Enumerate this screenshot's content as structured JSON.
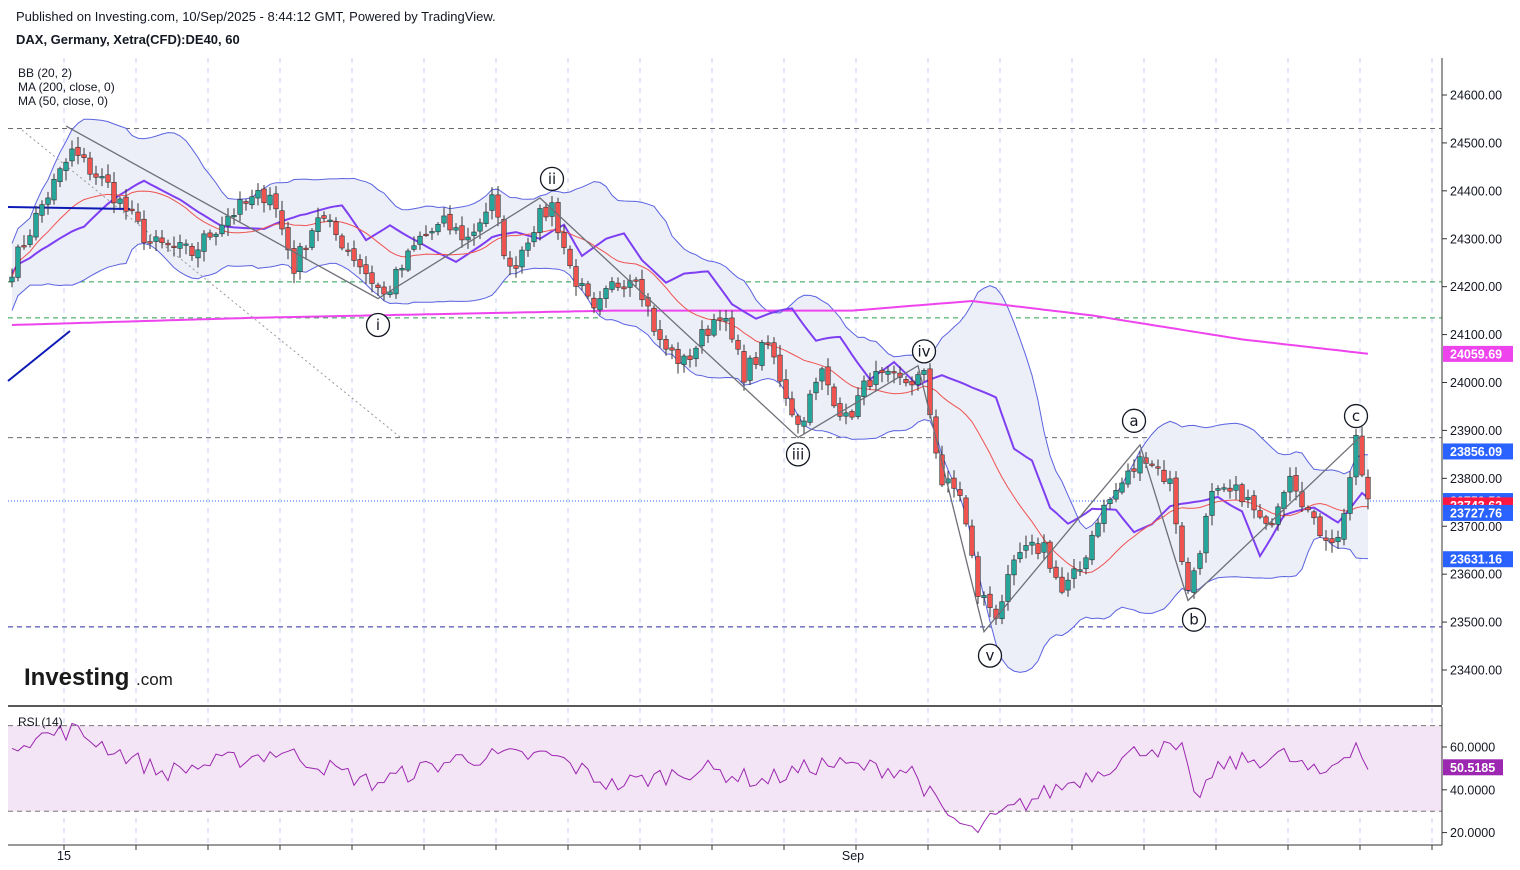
{
  "header": {
    "published": "Published on Investing.com, 10/Sep/2025 - 8:44:12 GMT, Powered by TradingView.",
    "symbol": "DAX, Germany, Xetra(CFD):DE40, 60"
  },
  "logo": {
    "name": "Investing",
    "domain": ".com"
  },
  "colors": {
    "up": "#26a69a",
    "down": "#ef5350",
    "bb": "#5b63e0",
    "bb_fill": "#eceef8",
    "ma200": "#ee44ee",
    "ma50": "#7e3ff2",
    "sma_red": "#ef5350",
    "last_price": "#ff1744",
    "rsi_line": "#9c27b0",
    "rsi_fill": "#f3e5f5"
  },
  "indicators": [
    "BB (20, 2)",
    "MA (200, close, 0)",
    "MA (50, close, 0)"
  ],
  "rsi": {
    "label": "RSI (14)",
    "value_badge": "50.5185",
    "value": 50.5185,
    "ticks": [
      "60.0000",
      "40.0000",
      "20.0000"
    ],
    "bands": [
      70,
      30
    ]
  },
  "chart_data": {
    "type": "candlestick",
    "price_ticks": [
      "24600.00",
      "24500.00",
      "24400.00",
      "24300.00",
      "24200.00",
      "24100.00",
      "24000.00",
      "23900.00",
      "23800.00",
      "23700.00",
      "23600.00",
      "23500.00",
      "23400.00"
    ],
    "x_labels": [
      "15",
      "Sep"
    ],
    "price_badges": [
      {
        "label": "24059.69",
        "value": 24059.69,
        "color": "#ee44ee"
      },
      {
        "label": "23856.09",
        "value": 23856.09,
        "color": "#2962ff"
      },
      {
        "label": "23752.59",
        "value": 23752.59,
        "color": "#2962ff"
      },
      {
        "label": "23743.62",
        "value": 23743.62,
        "color": "#ff1744"
      },
      {
        "label": "23727.76",
        "value": 23727.76,
        "color": "#2962ff"
      },
      {
        "label": "23631.16",
        "value": 23631.16,
        "color": "#2962ff"
      }
    ],
    "horizontal_levels": [
      {
        "value": 24530,
        "color": "#6b6b6b",
        "style": "dashed"
      },
      {
        "value": 24210,
        "color": "#2e9e4e",
        "style": "dashed"
      },
      {
        "value": 24135,
        "color": "#2e9e4e",
        "style": "dashed"
      },
      {
        "value": 23885,
        "color": "#6b6b6b",
        "style": "dashed"
      },
      {
        "value": 23752.59,
        "color": "#2962ff",
        "style": "dotted"
      },
      {
        "value": 23490,
        "color": "#2a2aa0",
        "style": "dashed"
      }
    ],
    "wave_labels": [
      {
        "label": "i",
        "i": 61,
        "value": 24120
      },
      {
        "label": "ii",
        "i": 90,
        "value": 24425
      },
      {
        "label": "iii",
        "i": 131,
        "value": 23850
      },
      {
        "label": "iv",
        "i": 152,
        "value": 24065
      },
      {
        "label": "v",
        "i": 163,
        "value": 23430
      },
      {
        "label": "a",
        "i": 187,
        "value": 23920
      },
      {
        "label": "b",
        "i": 197,
        "value": 23505
      },
      {
        "label": "c",
        "i": 224,
        "value": 23930
      }
    ],
    "wave_path": [
      {
        "i": 9,
        "value": 24535
      },
      {
        "i": 61,
        "value": 24175
      },
      {
        "i": 88,
        "value": 24385
      },
      {
        "i": 131,
        "value": 23885
      },
      {
        "i": 151,
        "value": 24035
      },
      {
        "i": 162,
        "value": 23480
      },
      {
        "i": 188,
        "value": 23870
      },
      {
        "i": 196,
        "value": 23545
      },
      {
        "i": 225,
        "value": 23890
      }
    ],
    "anchors": [
      {
        "i": 0,
        "value": 24240
      },
      {
        "i": 5,
        "value": 24370
      },
      {
        "i": 10,
        "value": 24480
      },
      {
        "i": 16,
        "value": 24410
      },
      {
        "i": 23,
        "value": 24290
      },
      {
        "i": 30,
        "value": 24270
      },
      {
        "i": 36,
        "value": 24350
      },
      {
        "i": 43,
        "value": 24400
      },
      {
        "i": 47,
        "value": 24240
      },
      {
        "i": 51,
        "value": 24350
      },
      {
        "i": 56,
        "value": 24280
      },
      {
        "i": 62,
        "value": 24180
      },
      {
        "i": 68,
        "value": 24300
      },
      {
        "i": 72,
        "value": 24330
      },
      {
        "i": 76,
        "value": 24300
      },
      {
        "i": 80,
        "value": 24380
      },
      {
        "i": 83,
        "value": 24230
      },
      {
        "i": 87,
        "value": 24330
      },
      {
        "i": 90,
        "value": 24370
      },
      {
        "i": 93,
        "value": 24240
      },
      {
        "i": 97,
        "value": 24140
      },
      {
        "i": 100,
        "value": 24200
      },
      {
        "i": 104,
        "value": 24230
      },
      {
        "i": 108,
        "value": 24080
      },
      {
        "i": 112,
        "value": 24040
      },
      {
        "i": 118,
        "value": 24150
      },
      {
        "i": 122,
        "value": 24020
      },
      {
        "i": 126,
        "value": 24080
      },
      {
        "i": 131,
        "value": 23910
      },
      {
        "i": 135,
        "value": 24020
      },
      {
        "i": 139,
        "value": 23920
      },
      {
        "i": 143,
        "value": 24010
      },
      {
        "i": 148,
        "value": 24000
      },
      {
        "i": 152,
        "value": 24010
      },
      {
        "i": 155,
        "value": 23790
      },
      {
        "i": 158,
        "value": 23770
      },
      {
        "i": 161,
        "value": 23560
      },
      {
        "i": 164,
        "value": 23520
      },
      {
        "i": 168,
        "value": 23640
      },
      {
        "i": 172,
        "value": 23660
      },
      {
        "i": 175,
        "value": 23560
      },
      {
        "i": 178,
        "value": 23610
      },
      {
        "i": 181,
        "value": 23720
      },
      {
        "i": 185,
        "value": 23790
      },
      {
        "i": 189,
        "value": 23850
      },
      {
        "i": 193,
        "value": 23790
      },
      {
        "i": 196,
        "value": 23560
      },
      {
        "i": 200,
        "value": 23760
      },
      {
        "i": 205,
        "value": 23770
      },
      {
        "i": 209,
        "value": 23690
      },
      {
        "i": 213,
        "value": 23820
      },
      {
        "i": 217,
        "value": 23700
      },
      {
        "i": 221,
        "value": 23670
      },
      {
        "i": 224,
        "value": 23870
      },
      {
        "i": 226,
        "value": 23750
      }
    ],
    "candle_count": 227,
    "ma200_anchors": [
      {
        "i": 0,
        "value": 24120
      },
      {
        "i": 40,
        "value": 24135
      },
      {
        "i": 100,
        "value": 24150
      },
      {
        "i": 140,
        "value": 24150
      },
      {
        "i": 160,
        "value": 24170
      },
      {
        "i": 180,
        "value": 24140
      },
      {
        "i": 205,
        "value": 24090
      },
      {
        "i": 226,
        "value": 24060
      }
    ],
    "rsi_anchors": [
      {
        "i": 0,
        "value": 62
      },
      {
        "i": 10,
        "value": 68
      },
      {
        "i": 25,
        "value": 48
      },
      {
        "i": 45,
        "value": 58
      },
      {
        "i": 60,
        "value": 43
      },
      {
        "i": 75,
        "value": 55
      },
      {
        "i": 90,
        "value": 56
      },
      {
        "i": 100,
        "value": 42
      },
      {
        "i": 115,
        "value": 50
      },
      {
        "i": 125,
        "value": 44
      },
      {
        "i": 135,
        "value": 52
      },
      {
        "i": 150,
        "value": 49
      },
      {
        "i": 155,
        "value": 30
      },
      {
        "i": 160,
        "value": 20
      },
      {
        "i": 166,
        "value": 30
      },
      {
        "i": 172,
        "value": 38
      },
      {
        "i": 182,
        "value": 50
      },
      {
        "i": 189,
        "value": 60
      },
      {
        "i": 195,
        "value": 58
      },
      {
        "i": 197,
        "value": 36
      },
      {
        "i": 202,
        "value": 52
      },
      {
        "i": 212,
        "value": 56
      },
      {
        "i": 218,
        "value": 46
      },
      {
        "i": 224,
        "value": 62
      },
      {
        "i": 226,
        "value": 50.5
      }
    ]
  }
}
